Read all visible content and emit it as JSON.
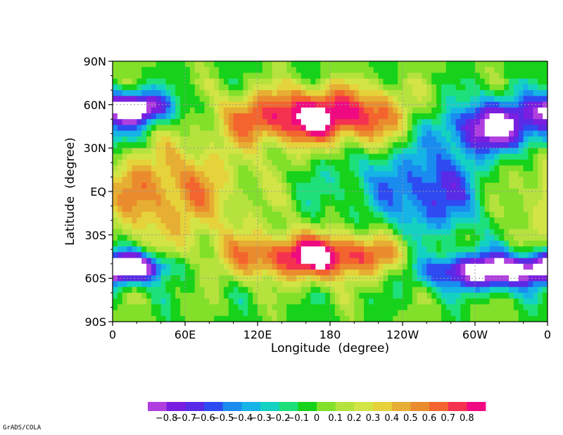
{
  "chart_data": {
    "type": "heatmap",
    "xlabel": "Longitude  (degree)",
    "ylabel": "Latitude  (degree)",
    "x_ticks": [
      "0",
      "60E",
      "120E",
      "180",
      "120W",
      "60W",
      "0"
    ],
    "y_ticks": [
      "90N",
      "60N",
      "30N",
      "EQ",
      "30S",
      "60S",
      "90S"
    ],
    "xlim": [
      0,
      360
    ],
    "ylim": [
      -90,
      90
    ],
    "grid": true,
    "colorbar": {
      "levels": [
        "-0.8",
        "-0.7",
        "-0.6",
        "-0.5",
        "-0.4",
        "-0.3",
        "-0.2",
        "-0.1",
        "0",
        "0.1",
        "0.2",
        "0.3",
        "0.4",
        "0.5",
        "0.6",
        "0.7",
        "0.8"
      ],
      "colors": [
        "#b03fe0",
        "#7a1ee0",
        "#5a2be6",
        "#2e4bf2",
        "#1a8cf0",
        "#16b4e6",
        "#14d2c2",
        "#1ee07a",
        "#16d21a",
        "#82e02a",
        "#b6e23e",
        "#d2e446",
        "#e6d23a",
        "#e6ae32",
        "#ea8c2e",
        "#f4642e",
        "#f43250",
        "#f00a82"
      ]
    },
    "centers": [
      {
        "lon": 180,
        "lat": 52,
        "value": 0.85
      },
      {
        "lon": 170,
        "lat": -45,
        "value": 0.85
      },
      {
        "lon": 45,
        "lat": 0,
        "value": 0.55
      },
      {
        "lon": 265,
        "lat": 0,
        "value": -0.55
      },
      {
        "lon": 320,
        "lat": 45,
        "value": -0.6
      },
      {
        "lon": 310,
        "lat": -55,
        "value": -0.8
      },
      {
        "lon": 20,
        "lat": 58,
        "value": -0.7
      },
      {
        "lon": 15,
        "lat": -52,
        "value": -0.75
      }
    ]
  },
  "footer": "GrADS/COLA"
}
